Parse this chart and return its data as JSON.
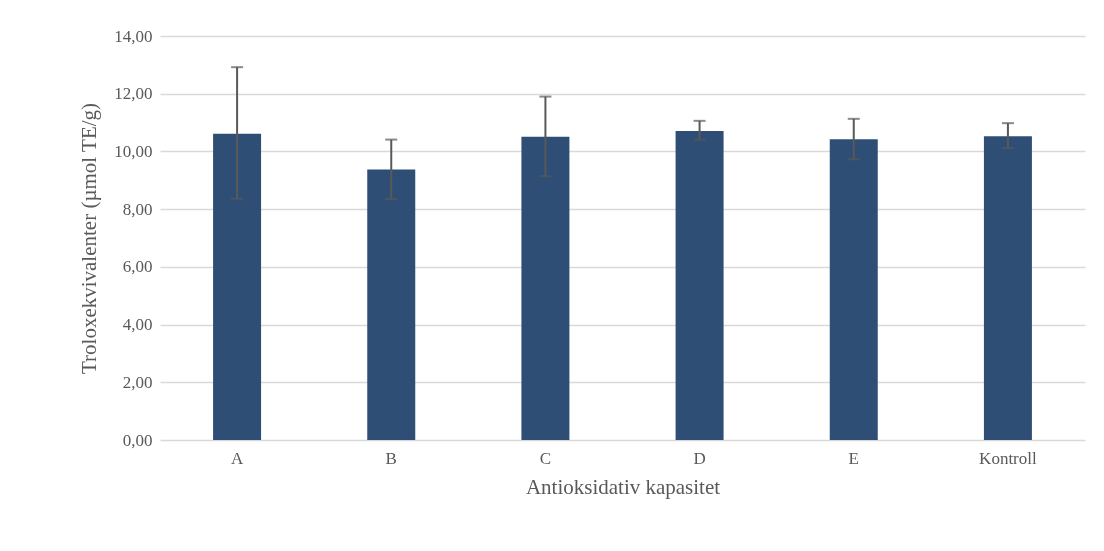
{
  "chart_data": {
    "type": "bar",
    "xlabel": "Antioksidativ kapasitet",
    "ylabel": "Troloxekvivalenter  (µmol TE/g)",
    "categories": [
      "A",
      "B",
      "C",
      "D",
      "E",
      "Kontroll"
    ],
    "values": [
      10.61,
      9.37,
      10.51,
      10.71,
      10.42,
      10.53
    ],
    "errors": [
      [
        8.36,
        12.92
      ],
      [
        8.35,
        10.41
      ],
      [
        9.14,
        11.9
      ],
      [
        10.41,
        11.06
      ],
      [
        9.73,
        11.13
      ],
      [
        10.12,
        10.98
      ]
    ],
    "color": "#2e4e76",
    "ylim": [
      0,
      14
    ],
    "yticks": [
      {
        "value": 0,
        "label": "0,00"
      },
      {
        "value": 2,
        "label": "2,00"
      },
      {
        "value": 4,
        "label": "4,00"
      },
      {
        "value": 6,
        "label": "6,00"
      },
      {
        "value": 8,
        "label": "8,00"
      },
      {
        "value": 10,
        "label": "10,00"
      },
      {
        "value": 12,
        "label": "12,00"
      },
      {
        "value": 14,
        "label": "14,00"
      }
    ],
    "grid": "y"
  }
}
